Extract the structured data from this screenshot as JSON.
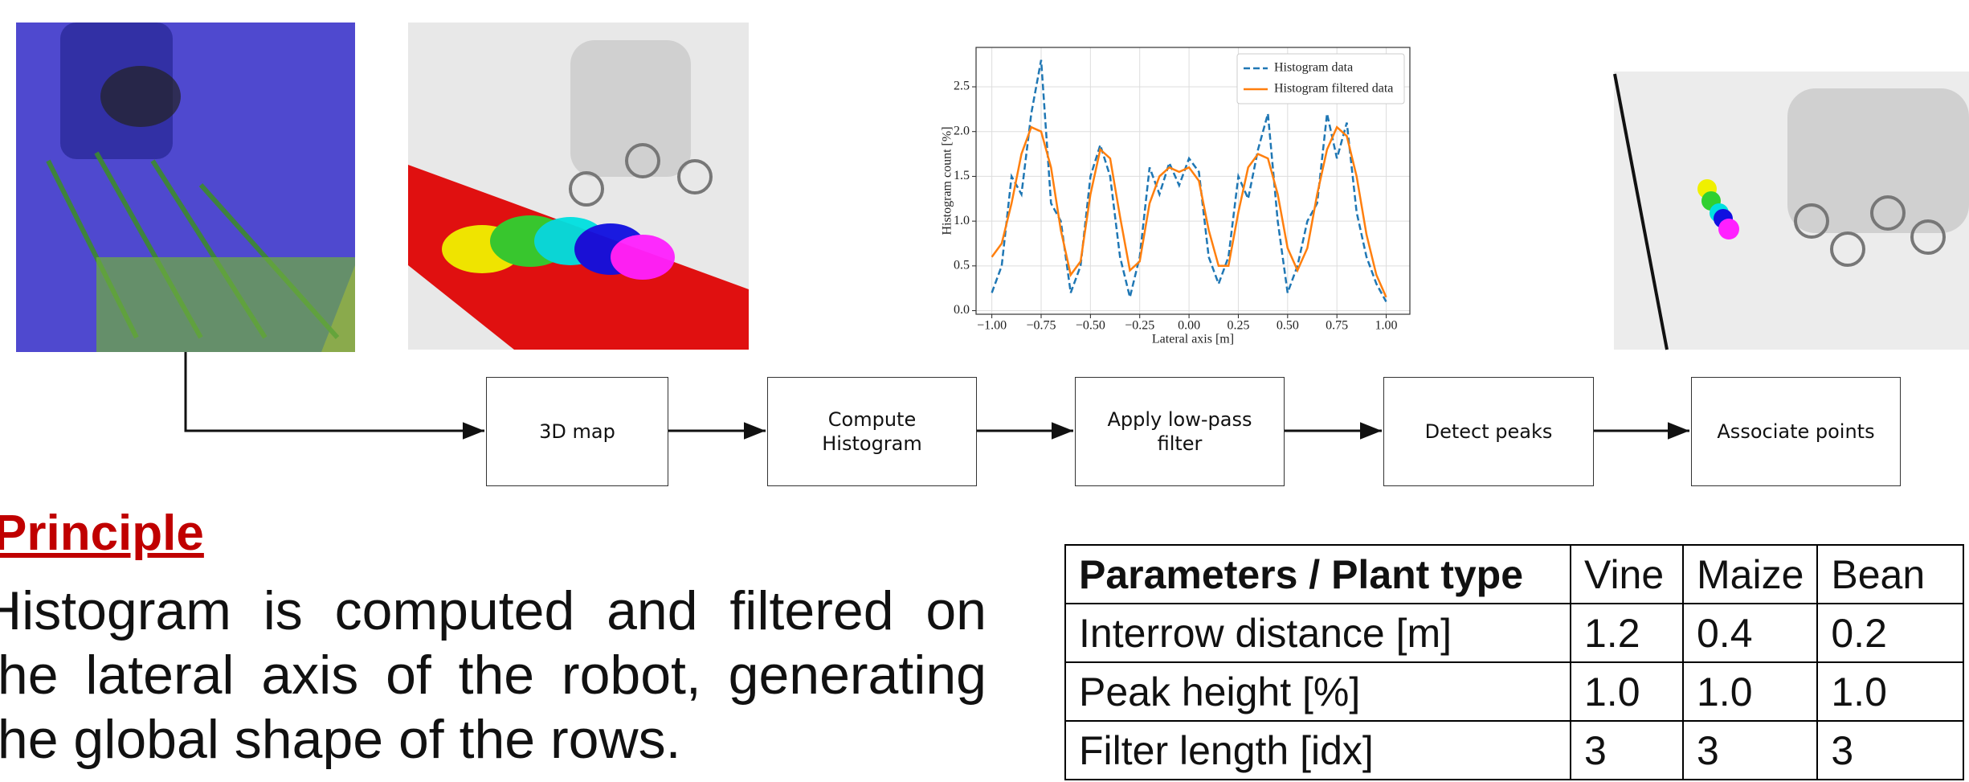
{
  "chart_data": {
    "type": "line",
    "x": [
      -1.0,
      -0.95,
      -0.9,
      -0.85,
      -0.8,
      -0.75,
      -0.7,
      -0.65,
      -0.6,
      -0.55,
      -0.5,
      -0.45,
      -0.4,
      -0.35,
      -0.3,
      -0.25,
      -0.2,
      -0.15,
      -0.1,
      -0.05,
      0.0,
      0.05,
      0.1,
      0.15,
      0.2,
      0.25,
      0.3,
      0.35,
      0.4,
      0.45,
      0.5,
      0.55,
      0.6,
      0.65,
      0.7,
      0.75,
      0.8,
      0.85,
      0.9,
      0.95,
      1.0
    ],
    "series": [
      {
        "name": "Histogram data",
        "color": "#1f77b4",
        "dashed": true,
        "values": [
          0.2,
          0.5,
          1.5,
          1.3,
          2.2,
          2.8,
          1.2,
          1.0,
          0.2,
          0.5,
          1.5,
          1.85,
          1.5,
          0.6,
          0.15,
          0.6,
          1.6,
          1.3,
          1.65,
          1.4,
          1.7,
          1.55,
          0.6,
          0.3,
          0.6,
          1.5,
          1.25,
          1.8,
          2.2,
          1.0,
          0.2,
          0.5,
          1.0,
          1.2,
          2.2,
          1.7,
          2.1,
          1.1,
          0.6,
          0.3,
          0.1
        ]
      },
      {
        "name": "Histogram filtered data",
        "color": "#ff7f0e",
        "dashed": false,
        "values": [
          0.6,
          0.75,
          1.2,
          1.75,
          2.05,
          2.0,
          1.6,
          0.9,
          0.4,
          0.55,
          1.3,
          1.8,
          1.7,
          1.05,
          0.45,
          0.55,
          1.2,
          1.5,
          1.6,
          1.55,
          1.6,
          1.45,
          0.9,
          0.5,
          0.5,
          1.1,
          1.6,
          1.75,
          1.7,
          1.3,
          0.7,
          0.45,
          0.7,
          1.3,
          1.8,
          2.05,
          1.95,
          1.5,
          0.85,
          0.4,
          0.15
        ]
      }
    ],
    "xlabel": "Lateral axis [m]",
    "ylabel": "Histogram count [%]",
    "xlim": [
      -1.08,
      1.12
    ],
    "ylim": [
      -0.04,
      2.94
    ],
    "xticks": [
      {
        "value": -1.0,
        "label": "−1.00"
      },
      {
        "value": -0.75,
        "label": "−0.75"
      },
      {
        "value": -0.5,
        "label": "−0.50"
      },
      {
        "value": -0.25,
        "label": "−0.25"
      },
      {
        "value": 0,
        "label": "0.00"
      },
      0.25,
      {
        "value": 0.5,
        "label": "0.50"
      },
      0.75,
      {
        "value": 1.0,
        "label": "1.00"
      }
    ],
    "yticks": [
      {
        "value": 0,
        "label": "0.0"
      },
      0.5,
      {
        "value": 1.0,
        "label": "1.0"
      },
      1.5,
      {
        "value": 2.0,
        "label": "2.0"
      },
      2.5
    ],
    "grid": true,
    "legend": "upper right"
  },
  "flow": {
    "nodes": [
      {
        "label": "3D map"
      },
      {
        "label": "Compute Histogram"
      },
      {
        "label": "Apply low-pass filter"
      },
      {
        "label": "Detect peaks"
      },
      {
        "label": "Associate points"
      }
    ]
  },
  "principle": {
    "heading": "Principle",
    "text": "Histogram is computed and filtered on the lateral axis of the robot, generating the global shape of the rows."
  },
  "table": {
    "rows": [
      [
        "Parameters / Plant type",
        "Vine",
        "Maize",
        "Bean"
      ],
      [
        "Interrow distance [m]",
        "1.2",
        "0.4",
        "0.2"
      ],
      [
        "Peak height [%]",
        "1.0",
        "1.0",
        "1.0"
      ],
      [
        "Filter length [idx]",
        "3",
        "3",
        "3"
      ]
    ]
  }
}
